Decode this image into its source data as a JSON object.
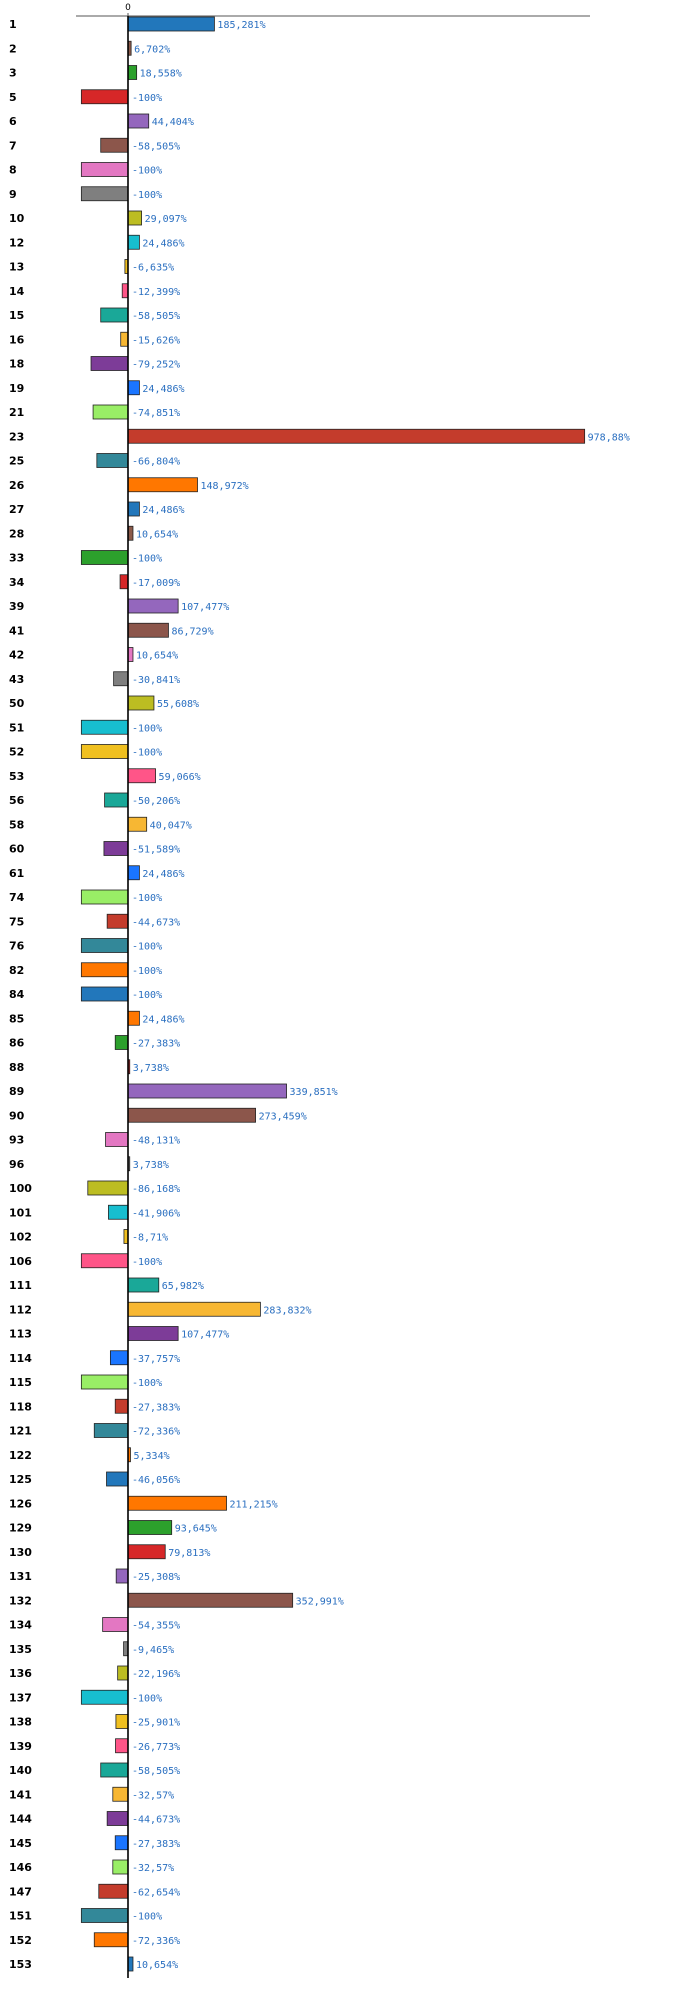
{
  "chart_data": {
    "type": "bar",
    "orientation": "horizontal",
    "title": "",
    "xlabel": "",
    "ylabel": "",
    "grid": false,
    "legend": "none",
    "xlim": [
      -100,
      978.88
    ],
    "x_ticks": [
      "0"
    ],
    "highlight_color": "#e00000",
    "palette": [
      "#2277bb",
      "#8b5a4a",
      "#2ca02c",
      "#d62728",
      "#9467bd",
      "#8c564b",
      "#e377c2",
      "#7f7f7f",
      "#bcbd22",
      "#17becf",
      "#f0c020",
      "#ff5588",
      "#1aa898",
      "#f7b733",
      "#7d3c98",
      "#1a75ff",
      "#99ee66",
      "#c43c2c",
      "#338899",
      "#ff7700"
    ],
    "bars": [
      {
        "category": "1",
        "value": 185.281,
        "label": "185,281%",
        "color": "#2277bb"
      },
      {
        "category": "2",
        "value": 6.702,
        "label": "6,702%",
        "color": "#8b5a4a"
      },
      {
        "category": "3",
        "value": 18.558,
        "label": "18,558%",
        "color": "#2ca02c"
      },
      {
        "category": "5",
        "value": -100,
        "label": "-100%",
        "color": "#d62728"
      },
      {
        "category": "6",
        "value": 44.404,
        "label": "44,404%",
        "color": "#9467bd"
      },
      {
        "category": "7",
        "value": -58.505,
        "label": "-58,505%",
        "color": "#8c564b"
      },
      {
        "category": "8",
        "value": -100,
        "label": "-100%",
        "color": "#e377c2"
      },
      {
        "category": "9",
        "value": -100,
        "label": "-100%",
        "color": "#7f7f7f"
      },
      {
        "category": "10",
        "value": 29.097,
        "label": "29,097%",
        "color": "#bcbd22"
      },
      {
        "category": "12",
        "value": 24.486,
        "label": "24,486%",
        "color": "#17becf"
      },
      {
        "category": "13",
        "value": -6.635,
        "label": "-6,635%",
        "color": "#f0c020"
      },
      {
        "category": "14",
        "value": -12.399,
        "label": "-12,399%",
        "color": "#ff5588"
      },
      {
        "category": "15",
        "value": -58.505,
        "label": "-58,505%",
        "color": "#1aa898"
      },
      {
        "category": "16",
        "value": -15.626,
        "label": "-15,626%",
        "color": "#f7b733"
      },
      {
        "category": "18",
        "value": -79.252,
        "label": "-79,252%",
        "color": "#7d3c98"
      },
      {
        "category": "19",
        "value": 24.486,
        "label": "24,486%",
        "color": "#1a75ff"
      },
      {
        "category": "21",
        "value": -74.851,
        "label": "-74,851%",
        "color": "#99ee66"
      },
      {
        "category": "23",
        "value": 978.88,
        "label": "978,88%",
        "color": "#c43c2c"
      },
      {
        "category": "25",
        "value": -66.804,
        "label": "-66,804%",
        "color": "#338899"
      },
      {
        "category": "26",
        "value": 148.972,
        "label": "148,972%",
        "color": "#ff7700"
      },
      {
        "category": "27",
        "value": 24.486,
        "label": "24,486%",
        "color": "#2277bb"
      },
      {
        "category": "28",
        "value": 10.654,
        "label": "10,654%",
        "color": "#8b5a4a"
      },
      {
        "category": "33",
        "value": -100,
        "label": "-100%",
        "color": "#2ca02c"
      },
      {
        "category": "34",
        "value": -17.009,
        "label": "-17,009%",
        "color": "#d62728"
      },
      {
        "category": "39",
        "value": 107.477,
        "label": "107,477%",
        "color": "#9467bd"
      },
      {
        "category": "41",
        "value": 86.729,
        "label": "86,729%",
        "color": "#8c564b"
      },
      {
        "category": "42",
        "value": 10.654,
        "label": "10,654%",
        "color": "#e377c2",
        "highlight": true
      },
      {
        "category": "43",
        "value": -30.841,
        "label": "-30,841%",
        "color": "#7f7f7f"
      },
      {
        "category": "50",
        "value": 55.608,
        "label": "55,608%",
        "color": "#bcbd22"
      },
      {
        "category": "51",
        "value": -100,
        "label": "-100%",
        "color": "#17becf"
      },
      {
        "category": "52",
        "value": -100,
        "label": "-100%",
        "color": "#f0c020"
      },
      {
        "category": "53",
        "value": 59.066,
        "label": "59,066%",
        "color": "#ff5588"
      },
      {
        "category": "56",
        "value": -50.206,
        "label": "-50,206%",
        "color": "#1aa898"
      },
      {
        "category": "58",
        "value": 40.047,
        "label": "40,047%",
        "color": "#f7b733"
      },
      {
        "category": "60",
        "value": -51.589,
        "label": "-51,589%",
        "color": "#7d3c98"
      },
      {
        "category": "61",
        "value": 24.486,
        "label": "24,486%",
        "color": "#1a75ff"
      },
      {
        "category": "74",
        "value": -100,
        "label": "-100%",
        "color": "#99ee66"
      },
      {
        "category": "75",
        "value": -44.673,
        "label": "-44,673%",
        "color": "#c43c2c"
      },
      {
        "category": "76",
        "value": -100,
        "label": "-100%",
        "color": "#338899"
      },
      {
        "category": "82",
        "value": -100,
        "label": "-100%",
        "color": "#ff7700"
      },
      {
        "category": "84",
        "value": -100,
        "label": "-100%",
        "color": "#2277bb"
      },
      {
        "category": "85",
        "value": 24.486,
        "label": "24,486%",
        "color": "#ff7700"
      },
      {
        "category": "86",
        "value": -27.383,
        "label": "-27,383%",
        "color": "#2ca02c"
      },
      {
        "category": "88",
        "value": 3.738,
        "label": "3,738%",
        "color": "#d62728"
      },
      {
        "category": "89",
        "value": 339.851,
        "label": "339,851%",
        "color": "#9467bd"
      },
      {
        "category": "90",
        "value": 273.459,
        "label": "273,459%",
        "color": "#8c564b"
      },
      {
        "category": "93",
        "value": -48.131,
        "label": "-48,131%",
        "color": "#e377c2"
      },
      {
        "category": "96",
        "value": 3.738,
        "label": "3,738%",
        "color": "#7f7f7f"
      },
      {
        "category": "100",
        "value": -86.168,
        "label": "-86,168%",
        "color": "#bcbd22"
      },
      {
        "category": "101",
        "value": -41.906,
        "label": "-41,906%",
        "color": "#17becf"
      },
      {
        "category": "102",
        "value": -8.71,
        "label": "-8,71%",
        "color": "#f0c020"
      },
      {
        "category": "106",
        "value": -100,
        "label": "-100%",
        "color": "#ff5588"
      },
      {
        "category": "111",
        "value": 65.982,
        "label": "65,982%",
        "color": "#1aa898"
      },
      {
        "category": "112",
        "value": 283.832,
        "label": "283,832%",
        "color": "#f7b733"
      },
      {
        "category": "113",
        "value": 107.477,
        "label": "107,477%",
        "color": "#7d3c98"
      },
      {
        "category": "114",
        "value": -37.757,
        "label": "-37,757%",
        "color": "#1a75ff"
      },
      {
        "category": "115",
        "value": -100,
        "label": "-100%",
        "color": "#99ee66"
      },
      {
        "category": "118",
        "value": -27.383,
        "label": "-27,383%",
        "color": "#c43c2c"
      },
      {
        "category": "121",
        "value": -72.336,
        "label": "-72,336%",
        "color": "#338899"
      },
      {
        "category": "122",
        "value": 5.334,
        "label": "5,334%",
        "color": "#ff7700"
      },
      {
        "category": "125",
        "value": -46.056,
        "label": "-46,056%",
        "color": "#2277bb"
      },
      {
        "category": "126",
        "value": 211.215,
        "label": "211,215%",
        "color": "#ff7700"
      },
      {
        "category": "129",
        "value": 93.645,
        "label": "93,645%",
        "color": "#2ca02c"
      },
      {
        "category": "130",
        "value": 79.813,
        "label": "79,813%",
        "color": "#d62728"
      },
      {
        "category": "131",
        "value": -25.308,
        "label": "-25,308%",
        "color": "#9467bd"
      },
      {
        "category": "132",
        "value": 352.991,
        "label": "352,991%",
        "color": "#8c564b"
      },
      {
        "category": "134",
        "value": -54.355,
        "label": "-54,355%",
        "color": "#e377c2"
      },
      {
        "category": "135",
        "value": -9.465,
        "label": "-9,465%",
        "color": "#7f7f7f"
      },
      {
        "category": "136",
        "value": -22.196,
        "label": "-22,196%",
        "color": "#bcbd22"
      },
      {
        "category": "137",
        "value": -100,
        "label": "-100%",
        "color": "#17becf"
      },
      {
        "category": "138",
        "value": -25.901,
        "label": "-25,901%",
        "color": "#f0c020"
      },
      {
        "category": "139",
        "value": -26.773,
        "label": "-26,773%",
        "color": "#ff5588"
      },
      {
        "category": "140",
        "value": -58.505,
        "label": "-58,505%",
        "color": "#1aa898"
      },
      {
        "category": "141",
        "value": -32.57,
        "label": "-32,57%",
        "color": "#f7b733"
      },
      {
        "category": "144",
        "value": -44.673,
        "label": "-44,673%",
        "color": "#7d3c98"
      },
      {
        "category": "145",
        "value": -27.383,
        "label": "-27,383%",
        "color": "#1a75ff"
      },
      {
        "category": "146",
        "value": -32.57,
        "label": "-32,57%",
        "color": "#99ee66"
      },
      {
        "category": "147",
        "value": -62.654,
        "label": "-62,654%",
        "color": "#c43c2c"
      },
      {
        "category": "151",
        "value": -100,
        "label": "-100%",
        "color": "#338899"
      },
      {
        "category": "152",
        "value": -72.336,
        "label": "-72,336%",
        "color": "#ff7700"
      },
      {
        "category": "153",
        "value": 10.654,
        "label": "10,654%",
        "color": "#2277bb"
      }
    ]
  }
}
